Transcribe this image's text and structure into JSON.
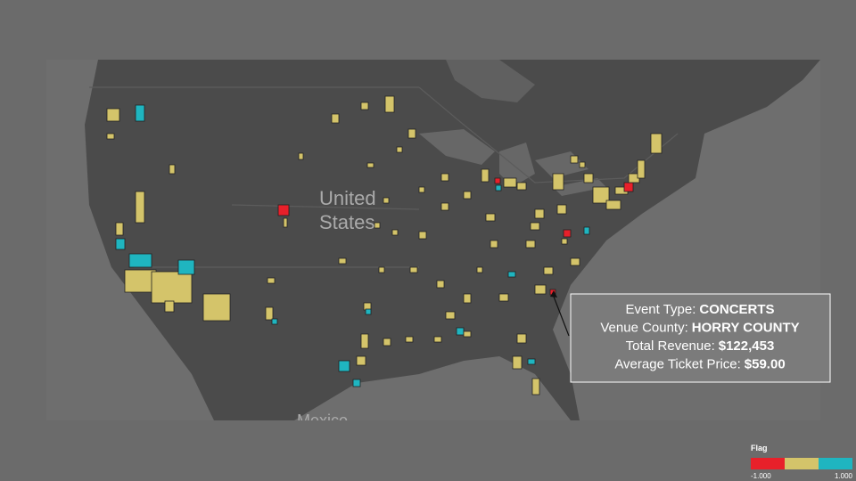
{
  "map_labels": {
    "usa": [
      "United",
      "States"
    ],
    "mexico": "Mexico"
  },
  "tooltip": {
    "rows": [
      {
        "label": "Event Type:",
        "value": "CONCERTS"
      },
      {
        "label": "Venue County:",
        "value": "HORRY COUNTY"
      },
      {
        "label": "Total Revenue:",
        "value": "$122,453"
      },
      {
        "label": "Average Ticket Price:",
        "value": "$59.00"
      }
    ]
  },
  "legend": {
    "title": "Flag",
    "min_label": "-1.000",
    "max_label": "1.000"
  }
}
